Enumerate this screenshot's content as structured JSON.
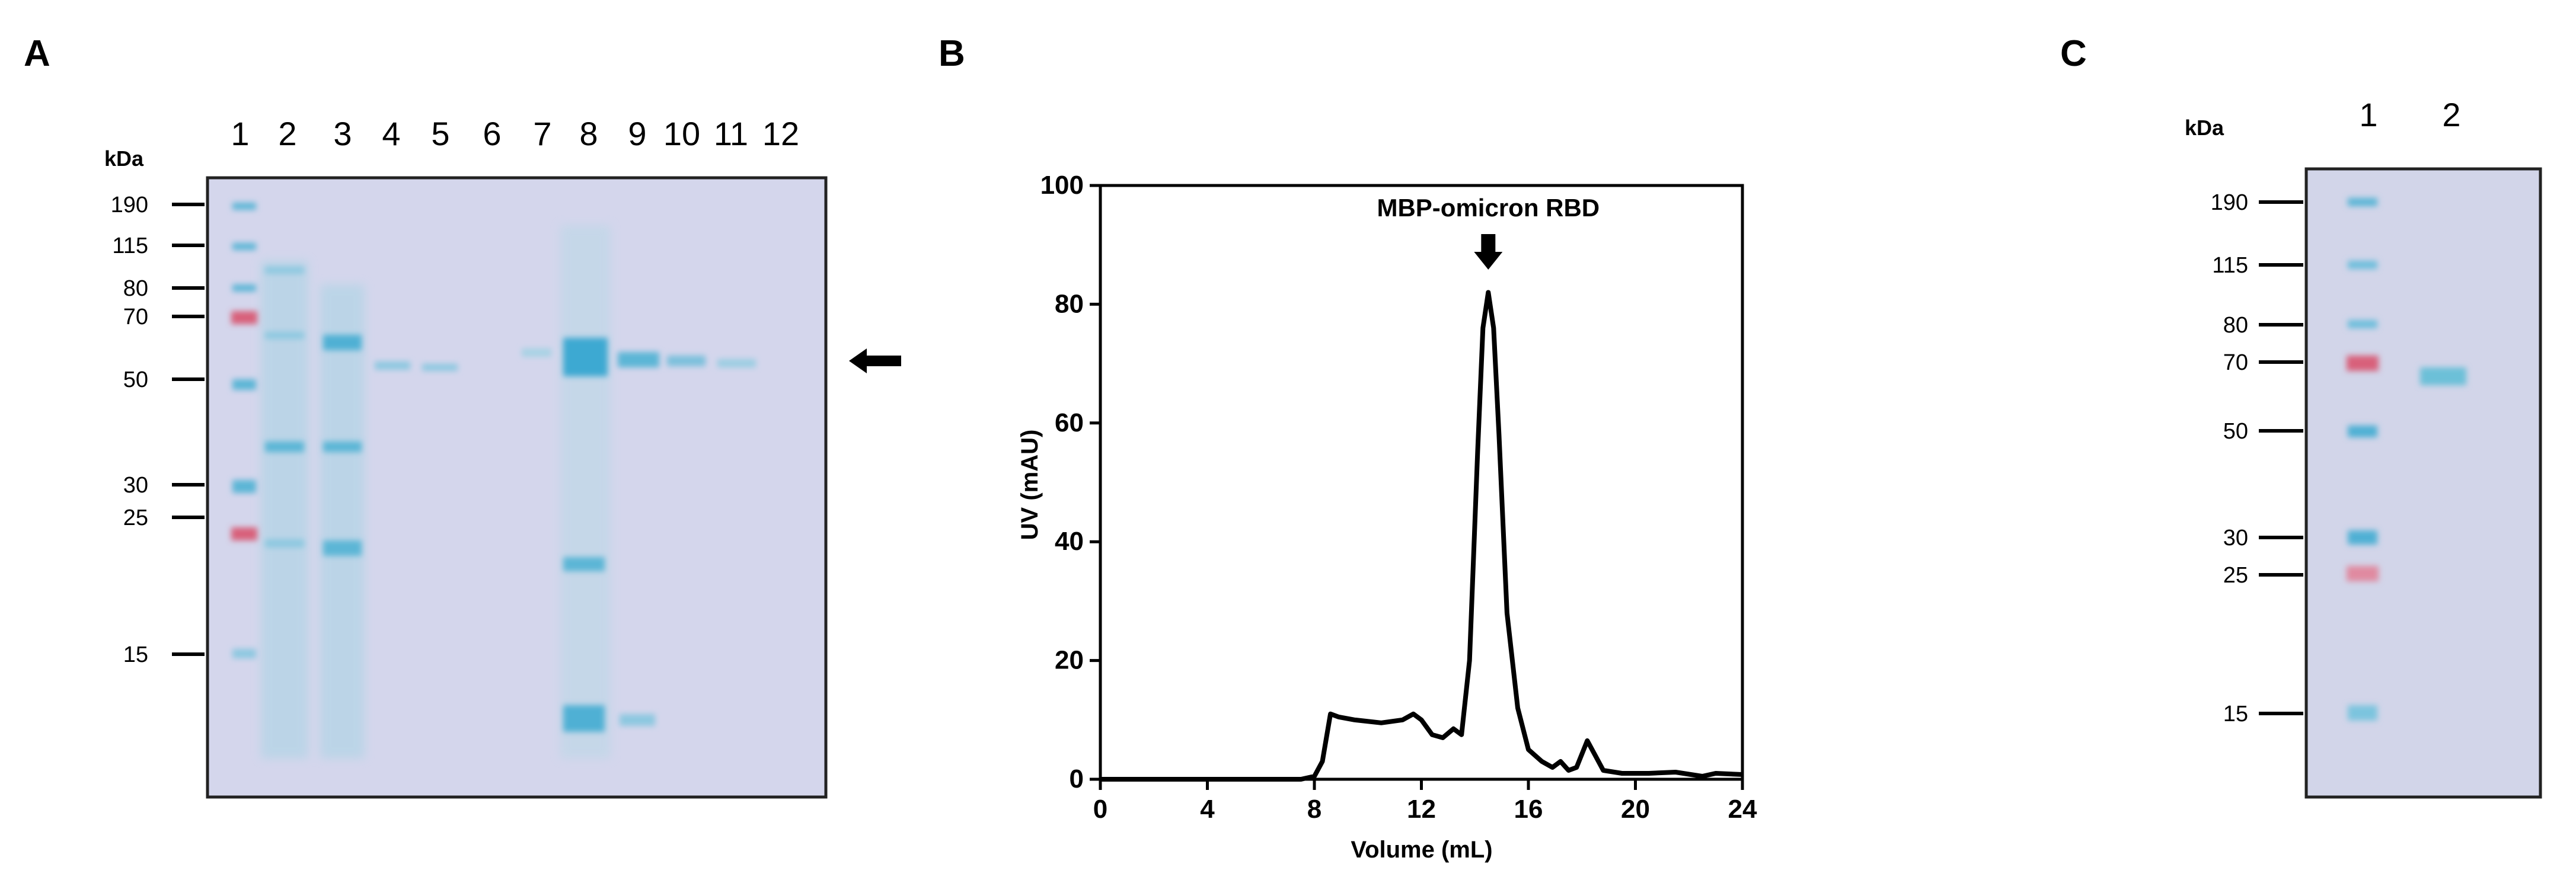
{
  "panels": [
    {
      "letter": "A"
    },
    {
      "letter": "B"
    },
    {
      "letter": "C"
    }
  ],
  "gel_a": {
    "kda_label": "kDa",
    "lanes": [
      "1",
      "2",
      "3",
      "4",
      "5",
      "6",
      "7",
      "8",
      "9",
      "10",
      "11",
      "12"
    ],
    "markers": [
      "190",
      "115",
      "80",
      "70",
      "50",
      "30",
      "25",
      "15"
    ],
    "arrow": "left-arrow-icon"
  },
  "gel_c": {
    "kda_label": "kDa",
    "lanes": [
      "1",
      "2"
    ],
    "markers": [
      "190",
      "115",
      "80",
      "70",
      "50",
      "30",
      "25",
      "15"
    ]
  },
  "colors": {
    "gel_background": "#d4d6ec",
    "band_blue": "#5bb6d6",
    "band_red": "#d8607a",
    "line": "#000000"
  },
  "chart_data": {
    "type": "line",
    "title": "",
    "annotation": "MBP-omicron RBD",
    "annotation_x": 14.5,
    "xlabel": "Volume (mL)",
    "ylabel": "UV (mAU)",
    "xlim": [
      0,
      24
    ],
    "ylim": [
      0,
      100
    ],
    "xticks": [
      "0",
      "4",
      "8",
      "12",
      "16",
      "20",
      "24"
    ],
    "yticks": [
      "0",
      "20",
      "40",
      "60",
      "80",
      "100"
    ],
    "series": [
      {
        "name": "UV",
        "x": [
          0,
          4,
          7.5,
          8.0,
          8.3,
          8.6,
          8.9,
          9.5,
          10.5,
          11.3,
          11.7,
          12.0,
          12.4,
          12.8,
          13.2,
          13.5,
          13.8,
          14.1,
          14.3,
          14.5,
          14.7,
          14.9,
          15.2,
          15.6,
          16.0,
          16.5,
          16.9,
          17.2,
          17.5,
          17.8,
          18.2,
          18.5,
          18.8,
          19.5,
          20.5,
          21.5,
          22.5,
          23,
          24
        ],
        "y": [
          0,
          0,
          0,
          0.5,
          3,
          11,
          10.5,
          10,
          9.5,
          10,
          11,
          10,
          7.5,
          7,
          8.5,
          7.5,
          20,
          55,
          76,
          82,
          76,
          58,
          28,
          12,
          5,
          3,
          2,
          3,
          1.5,
          2,
          6.5,
          4,
          1.5,
          1,
          1,
          1.2,
          0.5,
          1,
          0.8
        ]
      }
    ]
  }
}
